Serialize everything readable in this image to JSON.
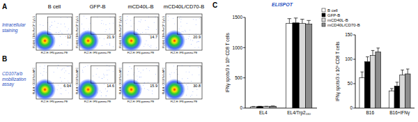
{
  "figure": {
    "panel_labels": [
      "A",
      "B",
      "C"
    ],
    "row_labels": [
      "Intracellular staining",
      "CD107a/b mobilization assay"
    ],
    "column_labels": [
      "B cell",
      "GFP-B",
      "mCD40L-B",
      "mCD40L/CD70-B"
    ],
    "flow": {
      "x_label": "FL2-H: IFN gamma PE",
      "y_labels": [
        "FL4-H: CD8a PerCP Cy5.5",
        "FL4-H: CD107a/b APC"
      ],
      "gate_percentages": [
        [
          12,
          21.9,
          14.7,
          20.9
        ],
        [
          6.94,
          14.6,
          15.9,
          30.8
        ]
      ]
    },
    "panel_c_title": "ELISPOT"
  },
  "chart_data": [
    {
      "type": "bar",
      "y_label": "IFNγ spots/3 x 10⁵ CD8 T cells",
      "categories": [
        "EL4",
        "EL4/Trp2₁₈₀"
      ],
      "series": [
        {
          "name": "B cell",
          "color": "#ffffff",
          "values": [
            20,
            1400
          ],
          "errors": [
            5,
            80
          ]
        },
        {
          "name": "GFP-B",
          "color": "#000000",
          "values": [
            25,
            1410
          ],
          "errors": [
            5,
            80
          ]
        },
        {
          "name": "mCD40L-B",
          "color": "#d9d9d9",
          "values": [
            25,
            1400
          ],
          "errors": [
            5,
            70
          ]
        },
        {
          "name": "mCD40L/CD70-B",
          "color": "#8c8c8c",
          "values": [
            30,
            1390
          ],
          "errors": [
            5,
            60
          ]
        }
      ],
      "ylim": [
        0,
        1500
      ],
      "yticks": [
        0,
        500,
        1000,
        1500
      ],
      "legend": "upper right"
    },
    {
      "type": "bar",
      "y_label": "IFNγ spots/3 x 10⁵ CD8 T cells",
      "categories": [
        "B16",
        "B16+IFNγ"
      ],
      "series": [
        {
          "color": "#ffffff",
          "values": [
            62,
            35
          ],
          "errors": [
            12,
            5
          ]
        },
        {
          "color": "#000000",
          "values": [
            95,
            45
          ],
          "errors": [
            10,
            8
          ]
        },
        {
          "color": "#d9d9d9",
          "values": [
            108,
            68
          ],
          "errors": [
            10,
            10
          ]
        },
        {
          "color": "#8c8c8c",
          "values": [
            115,
            70
          ],
          "errors": [
            8,
            10
          ]
        }
      ],
      "ylim": [
        0,
        150
      ],
      "yticks": [
        0,
        50,
        100,
        150
      ]
    }
  ]
}
